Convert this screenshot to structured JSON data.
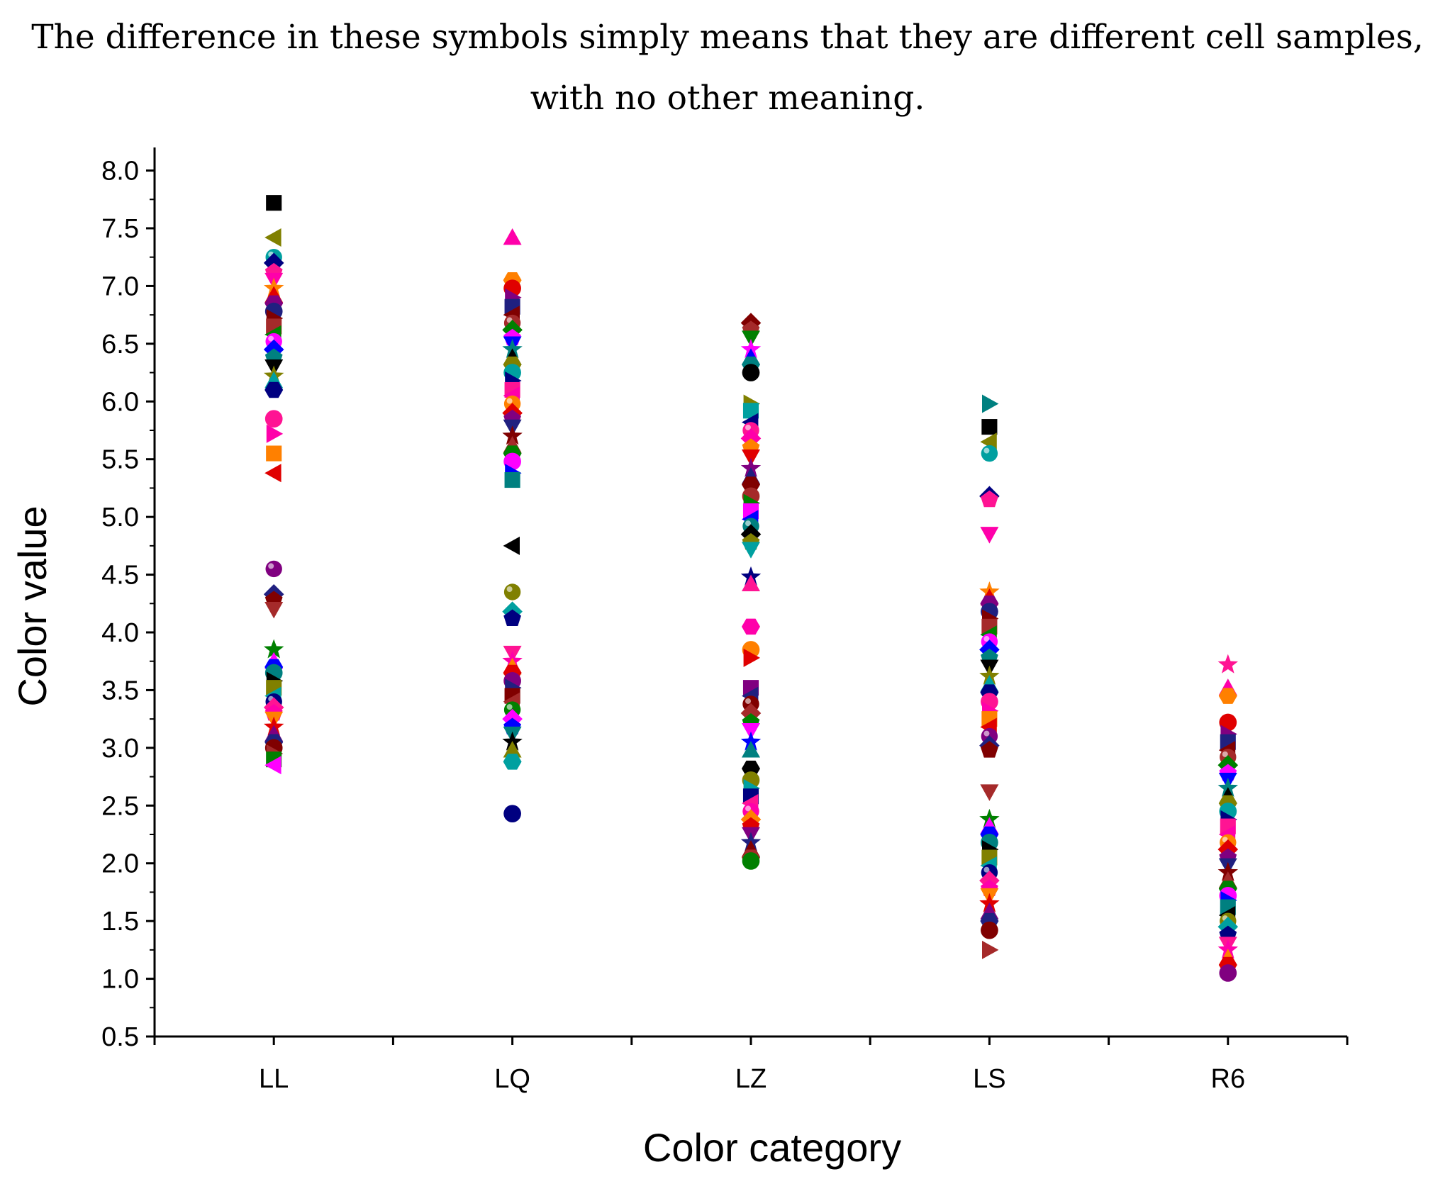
{
  "caption": {
    "line1": "The difference in these symbols simply means that they are different cell samples,",
    "line2": "with no other meaning."
  },
  "chart_data": {
    "type": "scatter",
    "xlabel": "Color category",
    "ylabel": "Color value",
    "categories": [
      "LL",
      "LQ",
      "LZ",
      "LS",
      "R6"
    ],
    "ylim": [
      0.5,
      8.2
    ],
    "y_ticks": [
      "0.5",
      "1.0",
      "1.5",
      "2.0",
      "2.5",
      "3.0",
      "3.5",
      "4.0",
      "4.5",
      "5.0",
      "5.5",
      "6.0",
      "6.5",
      "7.0",
      "7.5",
      "8.0"
    ],
    "marker_colors": [
      "#000000",
      "#e00000",
      "#0000ff",
      "#ff00aa",
      "#008000",
      "#000080",
      "#800000",
      "#808000",
      "#800080",
      "#008080",
      "#ff8000",
      "#ff00ff",
      "#ff1493",
      "#a52a2a",
      "#00a0a0",
      "#202080"
    ],
    "marker_shapes": [
      "square",
      "circle",
      "triangle-up",
      "triangle-down",
      "diamond",
      "triangle-left",
      "triangle-right",
      "hexagon",
      "star",
      "pentagon",
      "sphere"
    ],
    "series": [
      {
        "name": "LL",
        "values": [
          7.72,
          7.42,
          7.25,
          7.2,
          7.12,
          7.05,
          6.98,
          6.92,
          6.85,
          6.78,
          6.72,
          6.65,
          6.58,
          6.52,
          6.45,
          6.38,
          6.3,
          6.22,
          6.18,
          6.1,
          5.85,
          5.72,
          5.55,
          5.38,
          4.55,
          4.33,
          4.28,
          4.2,
          3.85,
          3.75,
          3.7,
          3.65,
          3.58,
          3.52,
          3.45,
          3.4,
          3.35,
          3.3,
          3.25,
          3.18,
          3.12,
          3.05,
          3.0,
          2.95,
          2.9,
          2.85
        ]
      },
      {
        "name": "LQ",
        "values": [
          7.42,
          7.05,
          6.98,
          6.9,
          6.82,
          6.75,
          6.68,
          6.62,
          6.55,
          6.5,
          6.45,
          6.38,
          6.32,
          6.25,
          6.18,
          6.1,
          6.05,
          5.98,
          5.9,
          5.85,
          5.78,
          5.7,
          5.62,
          5.55,
          5.48,
          5.38,
          5.32,
          4.75,
          4.35,
          4.18,
          4.12,
          3.82,
          3.75,
          3.7,
          3.65,
          3.58,
          3.52,
          3.45,
          3.4,
          3.33,
          3.25,
          3.18,
          3.12,
          3.05,
          2.98,
          2.88,
          2.43
        ]
      },
      {
        "name": "LZ",
        "values": [
          6.68,
          6.62,
          6.55,
          6.45,
          6.38,
          6.32,
          6.25,
          5.98,
          5.92,
          5.82,
          5.75,
          5.68,
          5.6,
          5.52,
          5.42,
          5.35,
          5.28,
          5.18,
          5.12,
          5.05,
          4.98,
          4.92,
          4.85,
          4.78,
          4.72,
          4.48,
          4.42,
          4.05,
          3.85,
          3.78,
          3.52,
          3.45,
          3.38,
          3.3,
          3.22,
          3.15,
          3.05,
          2.98,
          2.82,
          2.72,
          2.65,
          2.58,
          2.52,
          2.45,
          2.38,
          2.32,
          2.25,
          2.18,
          2.12,
          2.05,
          2.02
        ]
      },
      {
        "name": "LS",
        "values": [
          5.98,
          5.78,
          5.65,
          5.55,
          5.18,
          5.15,
          4.85,
          4.35,
          4.3,
          4.25,
          4.18,
          4.12,
          4.05,
          3.98,
          3.92,
          3.85,
          3.78,
          3.7,
          3.62,
          3.55,
          3.48,
          3.4,
          3.32,
          3.25,
          3.18,
          3.1,
          3.02,
          2.98,
          2.62,
          2.38,
          2.32,
          2.25,
          2.18,
          2.12,
          2.05,
          1.98,
          1.92,
          1.85,
          1.78,
          1.72,
          1.65,
          1.58,
          1.5,
          1.42,
          1.25
        ]
      },
      {
        "name": "R6",
        "values": [
          3.72,
          3.52,
          3.45,
          3.22,
          3.12,
          3.05,
          2.98,
          2.92,
          2.85,
          2.78,
          2.72,
          2.65,
          2.58,
          2.52,
          2.45,
          2.38,
          2.32,
          2.25,
          2.18,
          2.12,
          2.05,
          1.98,
          1.92,
          1.85,
          1.78,
          1.72,
          1.68,
          1.62,
          1.55,
          1.5,
          1.45,
          1.38,
          1.3,
          1.25,
          1.18,
          1.12,
          1.05
        ]
      }
    ]
  }
}
